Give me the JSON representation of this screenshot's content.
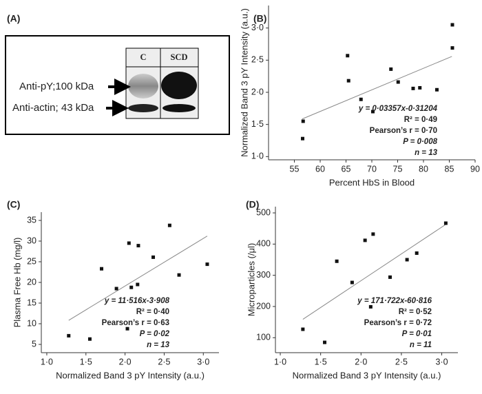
{
  "blot": {
    "label": "(A)",
    "lanes": [
      "C",
      "SCD"
    ],
    "bands": [
      "Anti-pY;100 kDa",
      "Anti-actin; 43 kDa"
    ]
  },
  "chart_data": [
    {
      "type": "scatter",
      "label": "(B)",
      "xlabel": "Percent HbS in Blood",
      "ylabel": "Normalized Band 3 pY Intensity (a.u.)",
      "color": "#111",
      "x": [
        56.6,
        56.7,
        65.3,
        65.5,
        67.9,
        70.2,
        73.7,
        75.1,
        78.0,
        79.3,
        82.6,
        85.6,
        85.6
      ],
      "values": [
        1.28,
        1.55,
        2.57,
        2.18,
        1.89,
        1.7,
        2.36,
        2.16,
        2.06,
        2.07,
        2.04,
        3.05,
        2.69
      ],
      "fit": {
        "x": [
          56.5,
          85.5
        ],
        "y": [
          1.585,
          2.558
        ]
      },
      "xlim": [
        50,
        90
      ],
      "xticks": [
        55,
        60,
        65,
        70,
        75,
        80,
        85,
        90
      ],
      "ylim": [
        0.95,
        3.35
      ],
      "yticks": [
        {
          "value": 1,
          "label": "1·0"
        },
        {
          "value": 1.5,
          "label": "1·5"
        },
        {
          "value": 2,
          "label": "2·0"
        },
        {
          "value": 2.5,
          "label": "2·5"
        },
        {
          "value": 3,
          "label": "3·0"
        }
      ],
      "annotations": [
        "y = 0·03357x-0·31204",
        "R² = 0·49",
        "Pearson’s r = 0·70",
        "P = 0·008",
        "n = 13"
      ]
    },
    {
      "type": "scatter",
      "label": "(C)",
      "xlabel": "Normalized Band 3 pY Intensity (a.u.)",
      "ylabel": "Plasma Free Hb (mg/l)",
      "color": "#111",
      "x": [
        1.28,
        1.55,
        1.7,
        1.89,
        2.03,
        2.05,
        2.08,
        2.16,
        2.17,
        2.36,
        2.57,
        2.69,
        3.05
      ],
      "values": [
        7.1,
        6.3,
        23.3,
        18.5,
        8.8,
        29.5,
        18.8,
        19.5,
        28.9,
        26.1,
        33.8,
        21.8,
        24.4
      ],
      "fit": {
        "x": [
          1.28,
          3.05
        ],
        "y": [
          10.83,
          31.22
        ]
      },
      "xlim": [
        0.93,
        3.2
      ],
      "xticks": [
        {
          "value": 1,
          "label": "1·0"
        },
        {
          "value": 1.5,
          "label": "1·5"
        },
        {
          "value": 2,
          "label": "2·0"
        },
        {
          "value": 2.5,
          "label": "2·5"
        },
        {
          "value": 3,
          "label": "3·0"
        }
      ],
      "ylim": [
        3,
        37
      ],
      "yticks": [
        5,
        10,
        15,
        20,
        25,
        30,
        35
      ],
      "annotations": [
        "y = 11·516x-3·908",
        "R² = 0·40",
        "Pearson’s r = 0·63",
        "P = 0·02",
        "n = 13"
      ]
    },
    {
      "type": "scatter",
      "label": "(D)",
      "xlabel": "Normalized Band 3 pY Intensity (a.u.)",
      "ylabel": "Microparticles (/μl)",
      "color": "#111",
      "x": [
        1.28,
        1.55,
        1.7,
        1.89,
        2.05,
        2.12,
        2.15,
        2.36,
        2.57,
        2.69,
        3.05
      ],
      "values": [
        127,
        85,
        345,
        277,
        412,
        199,
        432,
        294,
        350,
        371,
        467
      ],
      "fit": {
        "x": [
          1.28,
          3.05
        ],
        "y": [
          159,
          463
        ]
      },
      "xlim": [
        0.94,
        3.2
      ],
      "xticks": [
        {
          "value": 1,
          "label": "1·0"
        },
        {
          "value": 1.5,
          "label": "1·5"
        },
        {
          "value": 2,
          "label": "2·0"
        },
        {
          "value": 2.5,
          "label": "2·5"
        },
        {
          "value": 3,
          "label": "3·0"
        }
      ],
      "ylim": [
        52,
        520
      ],
      "yticks": [
        100,
        200,
        300,
        400,
        500
      ],
      "annotations": [
        "y = 171·722x-60·816",
        "R² = 0·52",
        "Pearson’s r = 0·72",
        "P = 0·01",
        "n = 11"
      ]
    }
  ]
}
